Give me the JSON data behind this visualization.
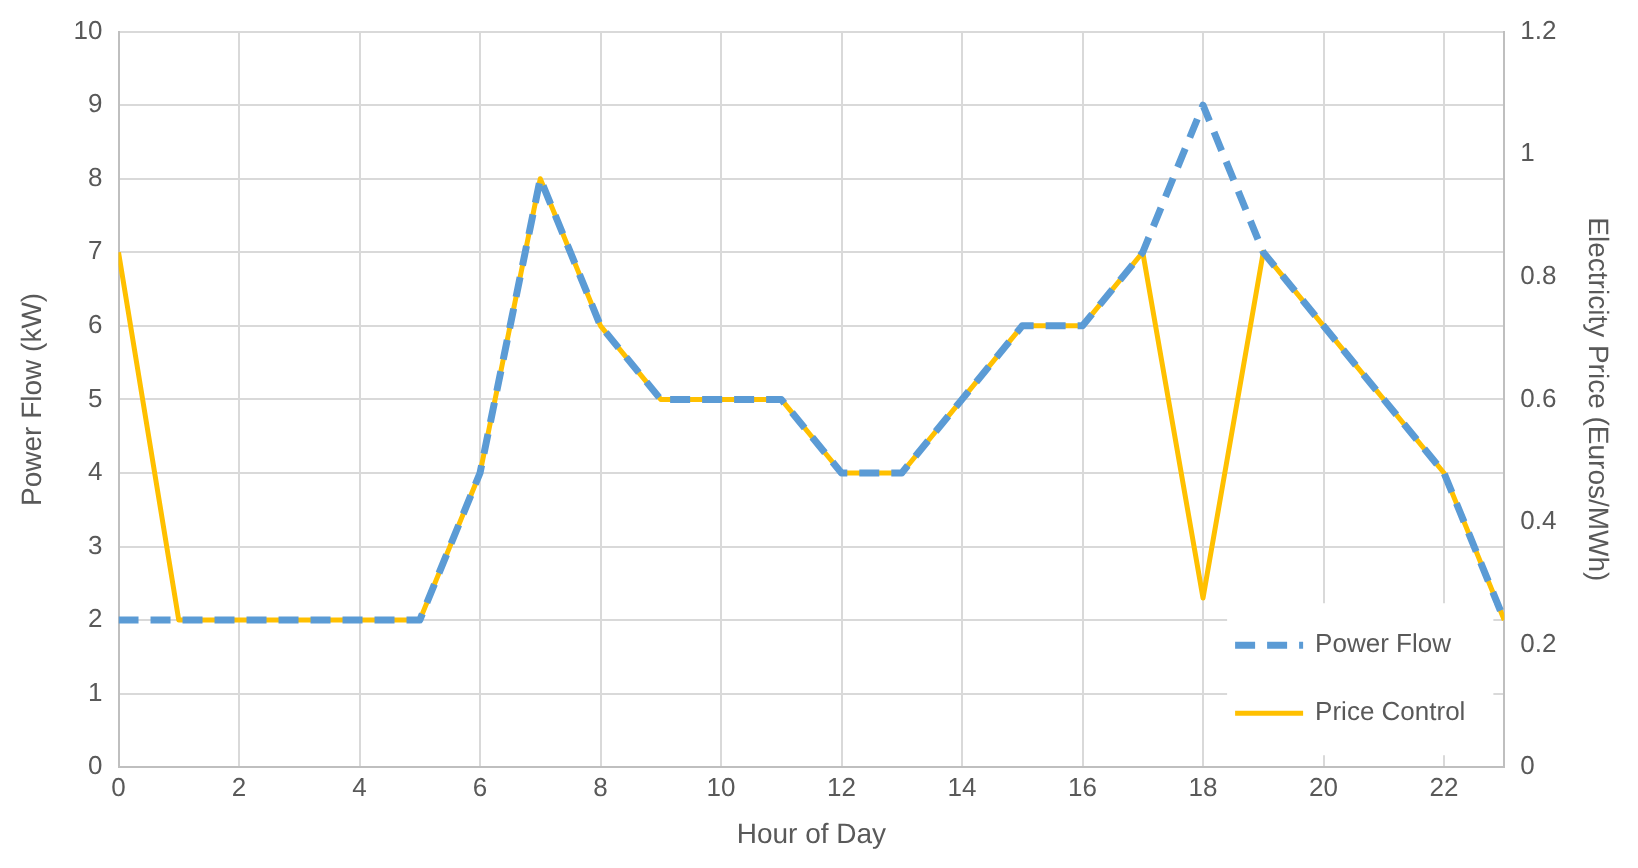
{
  "chart_data": {
    "type": "line",
    "xlabel": "Hour of Day",
    "ylabel": "Power Flow (kW)",
    "y2label": "Electricity Price (Euros/MWh)",
    "x": [
      0,
      1,
      2,
      3,
      4,
      5,
      6,
      7,
      8,
      9,
      10,
      11,
      12,
      13,
      14,
      15,
      16,
      17,
      18,
      19,
      20,
      21,
      22,
      23
    ],
    "series": [
      {
        "name": "Power Flow",
        "color": "#5b9bd5",
        "line_style": "dashed",
        "values": [
          2,
          2,
          2,
          2,
          2,
          2,
          4,
          8,
          6,
          5,
          5,
          5,
          4,
          4,
          5,
          6,
          6,
          7,
          9,
          7,
          6,
          5,
          4,
          2
        ]
      },
      {
        "name": "Price Control",
        "color": "#ffc000",
        "line_style": "solid",
        "values": [
          7,
          2,
          2,
          2,
          2,
          2,
          4,
          8,
          6,
          5,
          5,
          5,
          4,
          4,
          5,
          6,
          6,
          7,
          2.3,
          7,
          6,
          5,
          4,
          2
        ]
      }
    ],
    "xlim": [
      0,
      23
    ],
    "xticks": [
      0,
      2,
      4,
      6,
      8,
      10,
      12,
      14,
      16,
      18,
      20,
      22
    ],
    "ylim": [
      0,
      10
    ],
    "yticks": [
      0,
      1,
      2,
      3,
      4,
      5,
      6,
      7,
      8,
      9,
      10
    ],
    "y2lim": [
      0,
      1.2
    ],
    "y2ticks": [
      0,
      0.2,
      0.4,
      0.6,
      0.8,
      1,
      1.2
    ],
    "grid": true,
    "legend": "bottom right",
    "marker": "none"
  }
}
